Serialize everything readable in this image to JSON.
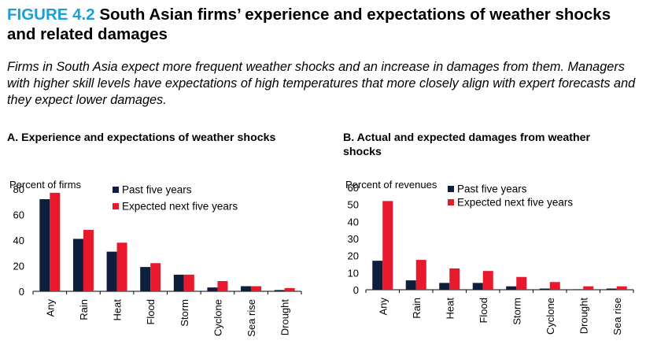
{
  "figure": {
    "label": "FIGURE 4.2",
    "title": "South Asian firms’ experience and expectations of weather shocks and related damages",
    "subtitle": "Firms in South Asia expect more frequent weather shocks and an increase in damages from them. Managers with higher skill levels have expectations of high temperatures that more closely align with expert forecasts and they expect lower damages."
  },
  "colors": {
    "past": "#0e1f3d",
    "expected": "#e8192c",
    "label_accent": "#1a9fd6"
  },
  "chart_data": [
    {
      "type": "bar",
      "title": "A. Experience and expectations of weather shocks",
      "ylabel": "Percent of firms",
      "xlabel": "",
      "ylim": [
        0,
        80
      ],
      "yticks": [
        0,
        20,
        40,
        60,
        80
      ],
      "categories": [
        "Any",
        "Rain",
        "Heat",
        "Flood",
        "Storm",
        "Cyclone",
        "Sea rise",
        "Drought"
      ],
      "legend_position": "top-right",
      "series": [
        {
          "name": "Past five years",
          "values": [
            72,
            41,
            31,
            19,
            13,
            3,
            4,
            1
          ]
        },
        {
          "name": "Expected next five years",
          "values": [
            77,
            48,
            38,
            22,
            13,
            8,
            4,
            2.5
          ]
        }
      ]
    },
    {
      "type": "bar",
      "title": "B. Actual and expected damages from weather shocks",
      "ylabel": "Percent of revenues",
      "xlabel": "",
      "ylim": [
        0,
        60
      ],
      "yticks": [
        0,
        10,
        20,
        30,
        40,
        50,
        60
      ],
      "categories": [
        "Any",
        "Rain",
        "Heat",
        "Flood",
        "Storm",
        "Cyclone",
        "Drought",
        "Sea rise"
      ],
      "legend_position": "top-right",
      "series": [
        {
          "name": "Past five years",
          "values": [
            17,
            5.5,
            4,
            4,
            2,
            0.7,
            0.3,
            0.7
          ]
        },
        {
          "name": "Expected next five years",
          "values": [
            52,
            17.5,
            12.5,
            11,
            7.5,
            4.5,
            2,
            2
          ]
        }
      ]
    }
  ]
}
